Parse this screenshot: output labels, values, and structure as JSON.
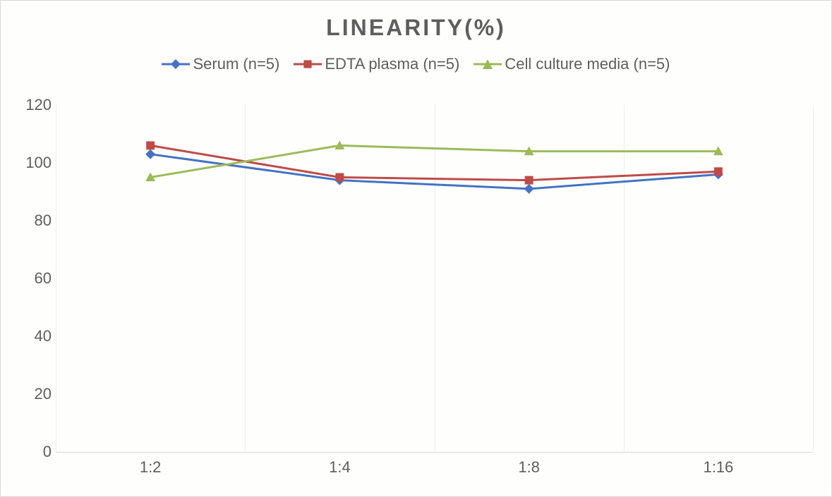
{
  "chart": {
    "type": "line",
    "title": "LINEARITY(%)",
    "title_fontsize": 32,
    "title_color": "#5e5e5e",
    "title_letter_spacing": 3,
    "background_color": "#fefefd",
    "border_color": "#d8d8d8",
    "grid_color": "#ededec",
    "axis_line_color": "#d8d8d8",
    "label_fontsize": 22,
    "label_color": "#5e5e5e",
    "ylim": [
      0,
      120
    ],
    "ytick_step": 20,
    "yticks": [
      0,
      20,
      40,
      60,
      80,
      100,
      120
    ],
    "categories": [
      "1:2",
      "1:4",
      "1:8",
      "1:16"
    ],
    "line_width": 3,
    "marker_size": 7,
    "series": [
      {
        "name": "Serum (n=5)",
        "color": "#4472c4",
        "marker": "diamond",
        "values": [
          103,
          94,
          91,
          96
        ]
      },
      {
        "name": "EDTA plasma (n=5)",
        "color": "#be4b48",
        "marker": "square",
        "values": [
          106,
          95,
          94,
          97
        ]
      },
      {
        "name": "Cell culture media (n=5)",
        "color": "#9bbb59",
        "marker": "triangle",
        "values": [
          95,
          106,
          104,
          104
        ]
      }
    ]
  }
}
